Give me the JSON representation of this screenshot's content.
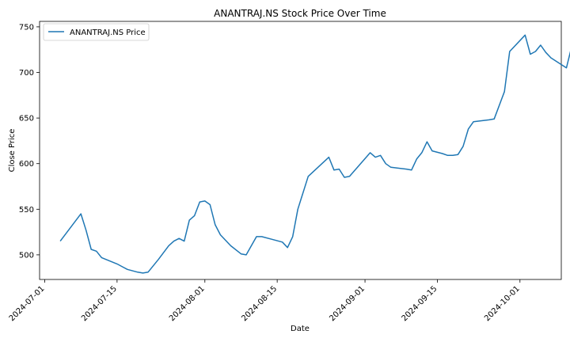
{
  "chart_data": {
    "type": "line",
    "title": "ANANTRAJ.NS Stock Price Over Time",
    "xlabel": "Date",
    "ylabel": "Close Price",
    "legend": {
      "position": "top-left",
      "entries": [
        "ANANTRAJ.NS Price"
      ]
    },
    "grid": false,
    "xlim": [
      "2024-06-30",
      "2024-10-09"
    ],
    "ylim": [
      473,
      756
    ],
    "x_ticks": [
      "2024-07-01",
      "2024-07-15",
      "2024-08-01",
      "2024-08-15",
      "2024-09-01",
      "2024-09-15",
      "2024-10-01"
    ],
    "y_ticks": [
      500,
      550,
      600,
      650,
      700,
      750
    ],
    "series": [
      {
        "name": "ANANTRAJ.NS Price",
        "color": "#1f77b4",
        "points": [
          [
            "2024-07-04",
            515
          ],
          [
            "2024-07-08",
            545
          ],
          [
            "2024-07-09",
            527
          ],
          [
            "2024-07-10",
            506
          ],
          [
            "2024-07-11",
            504
          ],
          [
            "2024-07-12",
            497
          ],
          [
            "2024-07-15",
            490
          ],
          [
            "2024-07-16",
            487
          ],
          [
            "2024-07-17",
            484
          ],
          [
            "2024-07-19",
            481
          ],
          [
            "2024-07-20",
            480
          ],
          [
            "2024-07-21",
            481
          ],
          [
            "2024-07-23",
            495
          ],
          [
            "2024-07-25",
            510
          ],
          [
            "2024-07-26",
            515
          ],
          [
            "2024-07-27",
            518
          ],
          [
            "2024-07-28",
            515
          ],
          [
            "2024-07-29",
            538
          ],
          [
            "2024-07-30",
            543
          ],
          [
            "2024-07-31",
            558
          ],
          [
            "2024-08-01",
            559
          ],
          [
            "2024-08-02",
            555
          ],
          [
            "2024-08-03",
            533
          ],
          [
            "2024-08-04",
            522
          ],
          [
            "2024-08-06",
            510
          ],
          [
            "2024-08-08",
            501
          ],
          [
            "2024-08-09",
            500
          ],
          [
            "2024-08-11",
            520
          ],
          [
            "2024-08-12",
            520
          ],
          [
            "2024-08-14",
            517
          ],
          [
            "2024-08-16",
            514
          ],
          [
            "2024-08-17",
            508
          ],
          [
            "2024-08-18",
            520
          ],
          [
            "2024-08-19",
            550
          ],
          [
            "2024-08-21",
            586
          ],
          [
            "2024-08-25",
            607
          ],
          [
            "2024-08-26",
            593
          ],
          [
            "2024-08-27",
            594
          ],
          [
            "2024-08-28",
            585
          ],
          [
            "2024-08-29",
            586
          ],
          [
            "2024-08-31",
            599
          ],
          [
            "2024-09-02",
            612
          ],
          [
            "2024-09-03",
            607
          ],
          [
            "2024-09-04",
            609
          ],
          [
            "2024-09-05",
            600
          ],
          [
            "2024-09-06",
            596
          ],
          [
            "2024-09-09",
            594
          ],
          [
            "2024-09-10",
            593
          ],
          [
            "2024-09-11",
            605
          ],
          [
            "2024-09-12",
            612
          ],
          [
            "2024-09-13",
            624
          ],
          [
            "2024-09-14",
            614
          ],
          [
            "2024-09-16",
            611
          ],
          [
            "2024-09-17",
            609
          ],
          [
            "2024-09-18",
            609
          ],
          [
            "2024-09-19",
            610
          ],
          [
            "2024-09-20",
            619
          ],
          [
            "2024-09-21",
            638
          ],
          [
            "2024-09-22",
            646
          ],
          [
            "2024-09-25",
            648
          ],
          [
            "2024-09-26",
            649
          ],
          [
            "2024-09-28",
            679
          ],
          [
            "2024-09-29",
            723
          ],
          [
            "2024-10-02",
            741
          ],
          [
            "2024-10-03",
            720
          ],
          [
            "2024-10-04",
            723
          ],
          [
            "2024-10-05",
            730
          ],
          [
            "2024-10-06",
            722
          ],
          [
            "2024-10-07",
            716
          ],
          [
            "2024-10-10",
            705
          ],
          [
            "2024-10-11",
            728
          ],
          [
            "2024-10-13",
            702
          ],
          [
            "2024-10-14",
            721
          ]
        ]
      }
    ]
  }
}
